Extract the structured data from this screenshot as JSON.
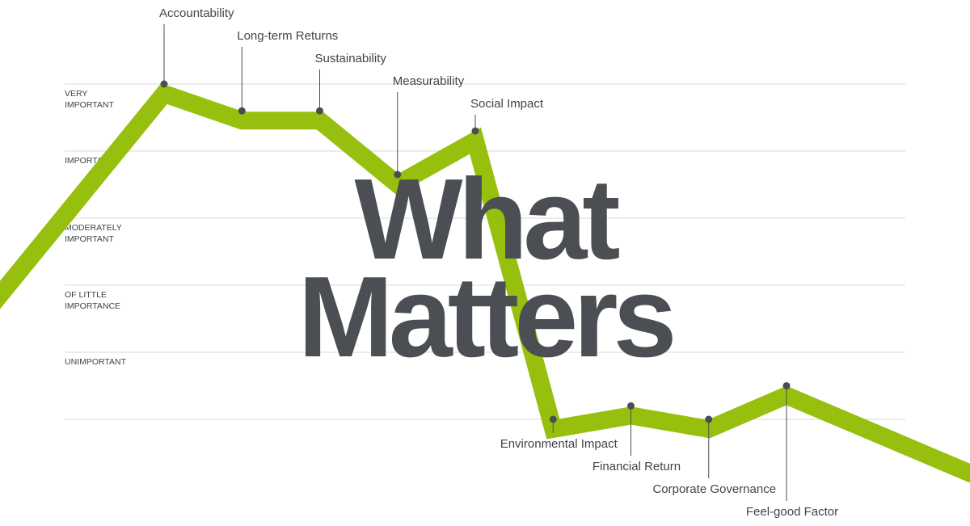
{
  "title": {
    "line1": "What",
    "line2": "Matters"
  },
  "chart_data": {
    "type": "line",
    "title": "What Matters",
    "y_levels": [
      {
        "value": 5,
        "lines": [
          "VERY",
          "IMPORTANT"
        ]
      },
      {
        "value": 4,
        "lines": [
          "IMPORTANT"
        ]
      },
      {
        "value": 3,
        "lines": [
          "MODERATELY",
          "IMPORTANT"
        ]
      },
      {
        "value": 2,
        "lines": [
          "OF LITTLE",
          "IMPORTANCE"
        ]
      },
      {
        "value": 1,
        "lines": [
          "UNIMPORTANT"
        ]
      }
    ],
    "ylim": [
      0,
      5
    ],
    "grid": true,
    "series": [
      {
        "color": "#97c00e",
        "points": [
          {
            "label": "Accountability",
            "value": 5.0,
            "label_pos": "above"
          },
          {
            "label": "Long-term Returns",
            "value": 4.6,
            "label_pos": "above"
          },
          {
            "label": "Sustainability",
            "value": 4.6,
            "label_pos": "above"
          },
          {
            "label": "Measurability",
            "value": 3.65,
            "label_pos": "above"
          },
          {
            "label": "Social Impact",
            "value": 4.3,
            "label_pos": "above"
          },
          {
            "label": "Environmental Impact",
            "value": 0.0,
            "label_pos": "below"
          },
          {
            "label": "Financial Return",
            "value": 0.2,
            "label_pos": "below"
          },
          {
            "label": "Corporate Governance",
            "value": 0.0,
            "label_pos": "below"
          },
          {
            "label": "Feel-good Factor",
            "value": 0.5,
            "label_pos": "below"
          }
        ]
      }
    ],
    "colors": {
      "line": "#97c00e",
      "point": "#4a4e52",
      "text": "#3f4449",
      "title": "#4b4f53",
      "grid": "#d9d9d9"
    }
  }
}
